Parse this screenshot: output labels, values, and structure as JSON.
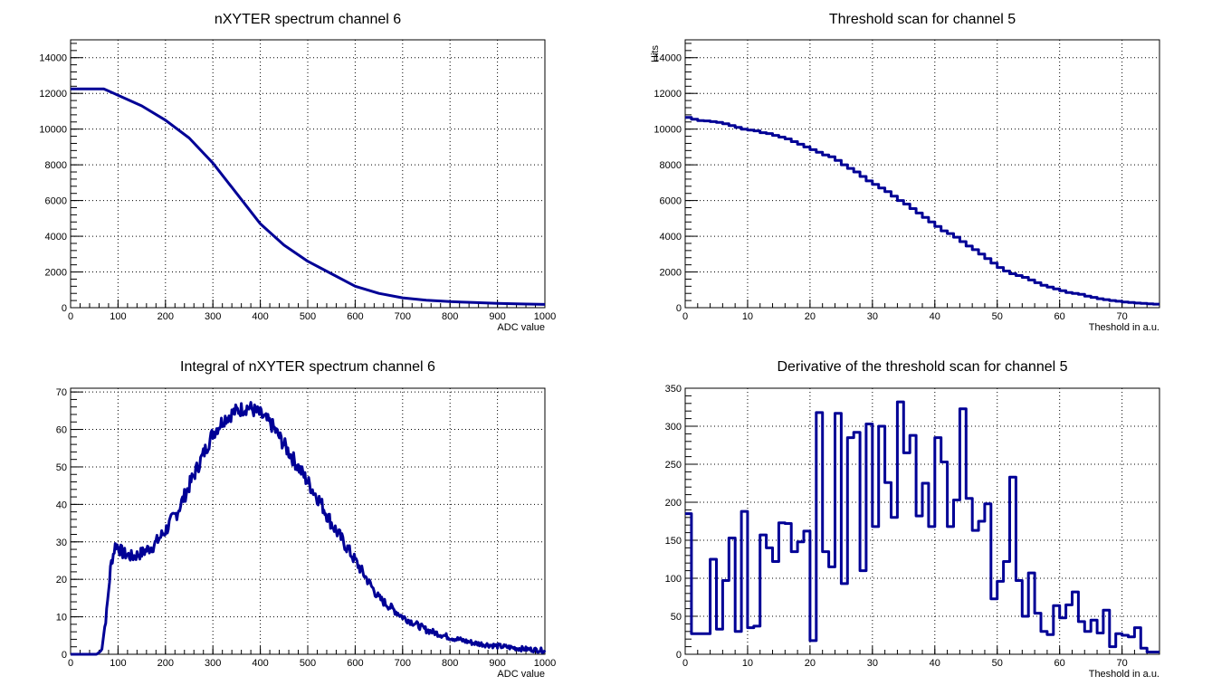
{
  "colors": {
    "series": "#000096",
    "grid": "#000000",
    "frame": "#000000",
    "background": "#ffffff"
  },
  "chart_data": [
    {
      "type": "line",
      "style": "smooth",
      "title": "nXYTER spectrum channel 6",
      "xlabel": "ADC value",
      "ylabel": "",
      "xlim": [
        0,
        1000
      ],
      "ylim": [
        0,
        15000
      ],
      "xticks": [
        0,
        100,
        200,
        300,
        400,
        500,
        600,
        700,
        800,
        900,
        1000
      ],
      "yticks": [
        0,
        2000,
        4000,
        6000,
        8000,
        10000,
        12000,
        14000
      ],
      "grid": true,
      "x": [
        0,
        70,
        100,
        150,
        200,
        250,
        300,
        350,
        400,
        450,
        500,
        550,
        600,
        650,
        700,
        750,
        800,
        850,
        900,
        950,
        1000
      ],
      "y": [
        12250,
        12250,
        11900,
        11300,
        10500,
        9500,
        8100,
        6400,
        4700,
        3500,
        2600,
        1900,
        1200,
        800,
        550,
        420,
        340,
        290,
        240,
        210,
        180
      ]
    },
    {
      "type": "line",
      "style": "step",
      "title": "Threshold scan for channel 5",
      "xlabel": "Theshold in a.u.",
      "ylabel": "Hits",
      "xlim": [
        0,
        76
      ],
      "ylim": [
        0,
        15000
      ],
      "xticks": [
        0,
        10,
        20,
        30,
        40,
        50,
        60,
        70
      ],
      "yticks": [
        0,
        2000,
        4000,
        6000,
        8000,
        10000,
        12000,
        14000
      ],
      "grid": true,
      "x": [
        0,
        1,
        2,
        3,
        4,
        5,
        6,
        7,
        8,
        9,
        10,
        11,
        12,
        13,
        14,
        15,
        16,
        17,
        18,
        19,
        20,
        21,
        22,
        23,
        24,
        25,
        26,
        27,
        28,
        29,
        30,
        31,
        32,
        33,
        34,
        35,
        36,
        37,
        38,
        39,
        40,
        41,
        42,
        43,
        44,
        45,
        46,
        47,
        48,
        49,
        50,
        51,
        52,
        53,
        54,
        55,
        56,
        57,
        58,
        59,
        60,
        61,
        62,
        63,
        64,
        65,
        66,
        67,
        68,
        69,
        70,
        71,
        72,
        73,
        74,
        75
      ],
      "y": [
        10650,
        10550,
        10480,
        10460,
        10420,
        10380,
        10300,
        10200,
        10100,
        10000,
        9950,
        9900,
        9800,
        9750,
        9650,
        9550,
        9450,
        9300,
        9150,
        9000,
        8850,
        8700,
        8550,
        8450,
        8250,
        8000,
        7800,
        7600,
        7350,
        7100,
        6900,
        6700,
        6500,
        6250,
        6000,
        5800,
        5550,
        5300,
        5050,
        4800,
        4550,
        4300,
        4150,
        3950,
        3700,
        3450,
        3250,
        3000,
        2750,
        2500,
        2250,
        2050,
        1900,
        1800,
        1700,
        1550,
        1400,
        1250,
        1150,
        1050,
        950,
        850,
        800,
        750,
        650,
        580,
        500,
        450,
        400,
        360,
        320,
        290,
        260,
        240,
        220,
        200
      ]
    },
    {
      "type": "line",
      "style": "noisy",
      "title": "Integral of nXYTER spectrum channel 6",
      "xlabel": "ADC value",
      "ylabel": "",
      "xlim": [
        0,
        1000
      ],
      "ylim": [
        0,
        71
      ],
      "xticks": [
        0,
        100,
        200,
        300,
        400,
        500,
        600,
        700,
        800,
        900,
        1000
      ],
      "yticks": [
        0,
        10,
        20,
        30,
        40,
        50,
        60,
        70
      ],
      "grid": true,
      "x": [
        0,
        55,
        65,
        75,
        85,
        95,
        110,
        130,
        150,
        175,
        200,
        225,
        250,
        275,
        300,
        325,
        350,
        375,
        400,
        425,
        450,
        475,
        500,
        525,
        550,
        575,
        600,
        625,
        650,
        700,
        750,
        800,
        850,
        900,
        950,
        1000
      ],
      "y": [
        0,
        0,
        1,
        10,
        24,
        29.5,
        27,
        26,
        27,
        29,
        33,
        38,
        45,
        52,
        59,
        63,
        65,
        66,
        64,
        61,
        56,
        51,
        46,
        41,
        35,
        30,
        25,
        20,
        15,
        10,
        6.5,
        4.5,
        3,
        2.2,
        1.5,
        1
      ]
    },
    {
      "type": "line",
      "style": "step",
      "title": "Derivative of the threshold scan for channel 5",
      "xlabel": "Theshold in a.u.",
      "ylabel": "",
      "xlim": [
        0,
        76
      ],
      "ylim": [
        0,
        350
      ],
      "xticks": [
        0,
        10,
        20,
        30,
        40,
        50,
        60,
        70
      ],
      "yticks": [
        0,
        50,
        100,
        150,
        200,
        250,
        300,
        350
      ],
      "grid": true,
      "x": [
        0,
        1,
        2,
        3,
        4,
        5,
        6,
        7,
        8,
        9,
        10,
        11,
        12,
        13,
        14,
        15,
        16,
        17,
        18,
        19,
        20,
        21,
        22,
        23,
        24,
        25,
        26,
        27,
        28,
        29,
        30,
        31,
        32,
        33,
        34,
        35,
        36,
        37,
        38,
        39,
        40,
        41,
        42,
        43,
        44,
        45,
        46,
        47,
        48,
        49,
        50,
        51,
        52,
        53,
        54,
        55,
        56,
        57,
        58,
        59,
        60,
        61,
        62,
        63,
        64,
        65,
        66,
        67,
        68,
        69,
        70,
        71,
        72,
        73,
        74,
        75
      ],
      "y": [
        185,
        27,
        27,
        27,
        125,
        33,
        97,
        153,
        30,
        188,
        35,
        37,
        157,
        140,
        122,
        173,
        172,
        135,
        148,
        162,
        18,
        318,
        135,
        115,
        317,
        93,
        285,
        292,
        110,
        303,
        168,
        300,
        226,
        180,
        332,
        265,
        288,
        182,
        225,
        168,
        285,
        253,
        168,
        203,
        323,
        205,
        163,
        175,
        198,
        73,
        96,
        122,
        233,
        97,
        50,
        107,
        54,
        30,
        26,
        64,
        48,
        65,
        82,
        43,
        30,
        45,
        28,
        58,
        10,
        27,
        25,
        23,
        35,
        8,
        3,
        3
      ]
    }
  ]
}
